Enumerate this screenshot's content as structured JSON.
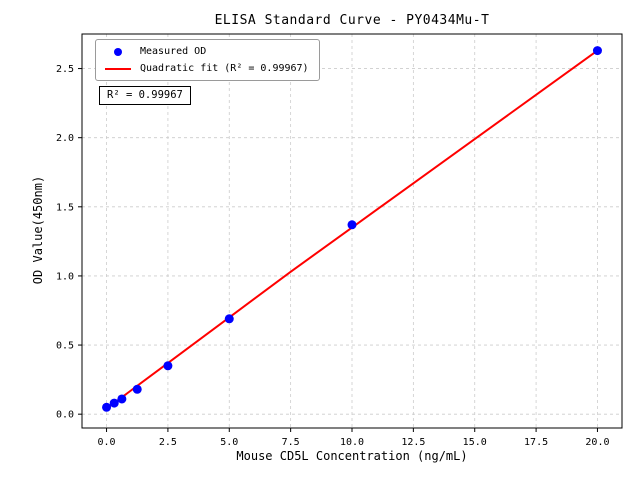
{
  "chart_data": {
    "type": "scatter",
    "title": "ELISA Standard Curve - PY0434Mu-T",
    "xlabel": "Mouse CD5L Concentration (ng/mL)",
    "ylabel": "OD Value(450nm)",
    "xlim": [
      -1,
      21
    ],
    "ylim": [
      -0.1,
      2.75
    ],
    "x_ticks": [
      "0.0",
      "2.5",
      "5.0",
      "7.5",
      "10.0",
      "12.5",
      "15.0",
      "17.5",
      "20.0"
    ],
    "y_ticks": [
      "0.0",
      "0.5",
      "1.0",
      "1.5",
      "2.0",
      "2.5"
    ],
    "grid": true,
    "grid_style": "dashed",
    "legend_position": "upper left",
    "annotation": "R² = 0.99967",
    "colors": {
      "scatter": "#0000ff",
      "fit_line": "#ff0000",
      "grid": "#cccccc",
      "axes": "#000000"
    },
    "series": [
      {
        "name": "Measured OD",
        "kind": "scatter",
        "color": "#0000ff",
        "x": [
          0,
          0.3125,
          0.625,
          1.25,
          2.5,
          5,
          10,
          20
        ],
        "y": [
          0.05,
          0.08,
          0.11,
          0.18,
          0.35,
          0.69,
          1.37,
          2.63
        ]
      },
      {
        "name": "Quadratic fit (R² = 0.99967)",
        "kind": "line",
        "color": "#ff0000",
        "x": [
          0,
          2.5,
          5,
          7.5,
          10,
          12.5,
          15,
          17.5,
          20
        ],
        "y": [
          0.04,
          0.37,
          0.7,
          1.03,
          1.35,
          1.67,
          1.99,
          2.31,
          2.63
        ]
      }
    ]
  }
}
